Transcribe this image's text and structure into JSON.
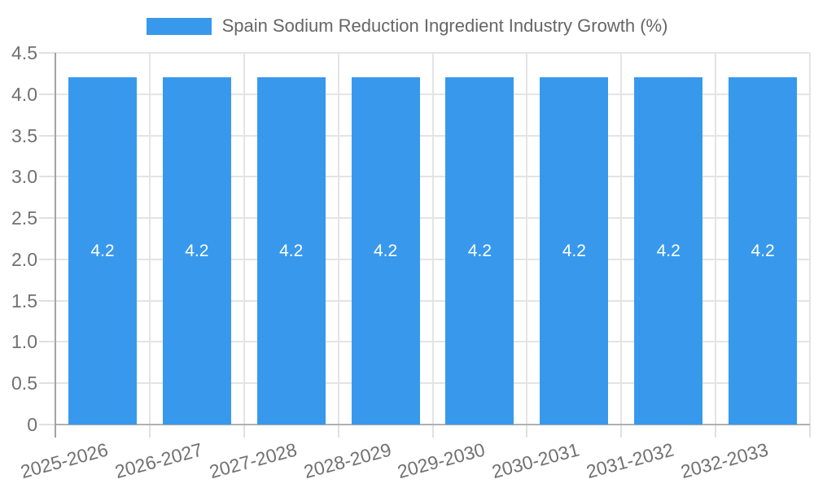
{
  "chart_data": {
    "type": "bar",
    "title": "Spain Sodium Reduction Ingredient Industry Growth (%)",
    "legend": {
      "label": "Spain Sodium Reduction Ingredient Industry Growth (%)",
      "position": "top-center"
    },
    "categories": [
      "2025-2026",
      "2026-2027",
      "2027-2028",
      "2028-2029",
      "2029-2030",
      "2030-2031",
      "2031-2032",
      "2032-2033"
    ],
    "series": [
      {
        "name": "Spain Sodium Reduction Ingredient Industry Growth (%)",
        "values": [
          4.2,
          4.2,
          4.2,
          4.2,
          4.2,
          4.2,
          4.2,
          4.2
        ]
      }
    ],
    "value_labels": [
      "4.2",
      "4.2",
      "4.2",
      "4.2",
      "4.2",
      "4.2",
      "4.2",
      "4.2"
    ],
    "xlabel": "",
    "ylabel": "",
    "ylim": [
      0,
      4.5
    ],
    "y_tick_labels": [
      "0",
      "0.5",
      "1.0",
      "1.5",
      "2.0",
      "2.5",
      "3.0",
      "3.5",
      "4.0",
      "4.5"
    ],
    "grid": true,
    "x_label_rotation_deg": -15,
    "colors": {
      "bar": "#3899EC",
      "gridline": "#e4e4e4",
      "axis_line": "#a3a3a3",
      "baseline": "#b0b0b0",
      "tick_text": "#717171",
      "title_text": "#666666",
      "value_label_text": "#ffffff"
    }
  }
}
